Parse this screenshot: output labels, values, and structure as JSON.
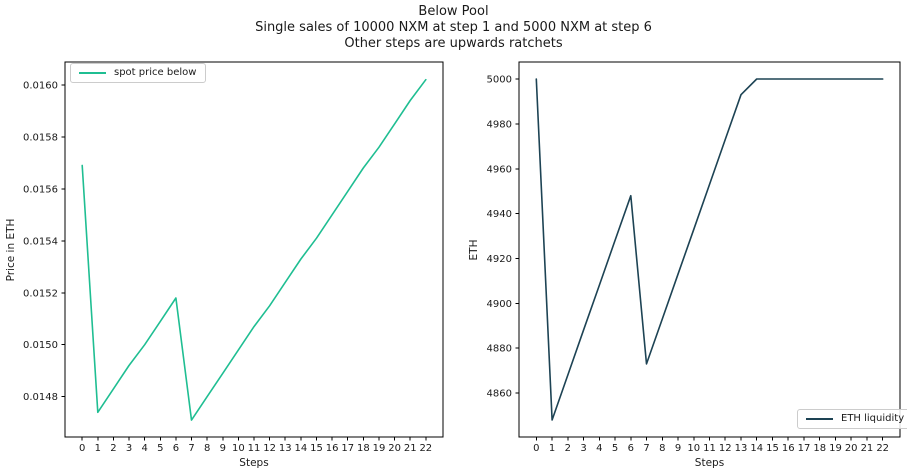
{
  "figure": {
    "title_line1": "Below Pool",
    "title_line2": "Single sales of 10000 NXM at step 1 and 5000 NXM at step 6",
    "title_line3": "Other steps are upwards ratchets"
  },
  "colors": {
    "background": "#ffffff",
    "axis_line": "#000000",
    "tick_text": "#1a1a1a",
    "legend_border": "#cccccc",
    "spot_price_line": "#1fbe92",
    "eth_liquidity_line": "#1d4354"
  },
  "chart_data": [
    {
      "id": "spot-price-chart",
      "type": "line",
      "title": "",
      "xlabel": "Steps",
      "ylabel": "Price in ETH",
      "legend_position": "upper left",
      "grid": false,
      "x": [
        0,
        1,
        2,
        3,
        4,
        5,
        6,
        7,
        8,
        9,
        10,
        11,
        12,
        13,
        14,
        15,
        16,
        17,
        18,
        19,
        20,
        21,
        22
      ],
      "xtick_labels": [
        "0",
        "1",
        "2",
        "3",
        "4",
        "5",
        "6",
        "7",
        "8",
        "9",
        "10",
        "11",
        "12",
        "13",
        "14",
        "15",
        "16",
        "17",
        "18",
        "19",
        "20",
        "21",
        "22"
      ],
      "ytick_values": [
        0.0148,
        0.015,
        0.0152,
        0.0154,
        0.0156,
        0.0158,
        0.016
      ],
      "ytick_labels": [
        "0.0148",
        "0.0150",
        "0.0152",
        "0.0154",
        "0.0156",
        "0.0158",
        "0.0160"
      ],
      "ylim": [
        0.014645,
        0.016088
      ],
      "series": [
        {
          "name": "spot price below",
          "color": "#1fbe92",
          "values": [
            0.01569,
            0.01474,
            0.01483,
            0.01492,
            0.015,
            0.01509,
            0.01518,
            0.01471,
            0.0148,
            0.01489,
            0.01498,
            0.01507,
            0.01515,
            0.01524,
            0.01533,
            0.01541,
            0.0155,
            0.01559,
            0.01568,
            0.01576,
            0.01585,
            0.01594,
            0.01602
          ]
        }
      ]
    },
    {
      "id": "eth-liquidity-chart",
      "type": "line",
      "title": "",
      "xlabel": "Steps",
      "ylabel": "ETH",
      "legend_position": "lower right",
      "grid": false,
      "x": [
        0,
        1,
        2,
        3,
        4,
        5,
        6,
        7,
        8,
        9,
        10,
        11,
        12,
        13,
        14,
        15,
        16,
        17,
        18,
        19,
        20,
        21,
        22
      ],
      "xtick_labels": [
        "0",
        "1",
        "2",
        "3",
        "4",
        "5",
        "6",
        "7",
        "8",
        "9",
        "10",
        "11",
        "12",
        "13",
        "14",
        "15",
        "16",
        "17",
        "18",
        "19",
        "20",
        "21",
        "22"
      ],
      "ytick_values": [
        4860,
        4880,
        4900,
        4920,
        4940,
        4960,
        4980,
        5000
      ],
      "ytick_labels": [
        "4860",
        "4880",
        "4900",
        "4920",
        "4940",
        "4960",
        "4980",
        "5000"
      ],
      "ylim": [
        4840.4,
        5007.6
      ],
      "series": [
        {
          "name": "ETH liquidity",
          "color": "#1d4354",
          "values": [
            5000,
            4848,
            4868,
            4888,
            4908,
            4928,
            4948,
            4873,
            4893,
            4913,
            4933,
            4953,
            4973,
            4993,
            5000,
            5000,
            5000,
            5000,
            5000,
            5000,
            5000,
            5000,
            5000
          ]
        }
      ]
    }
  ]
}
